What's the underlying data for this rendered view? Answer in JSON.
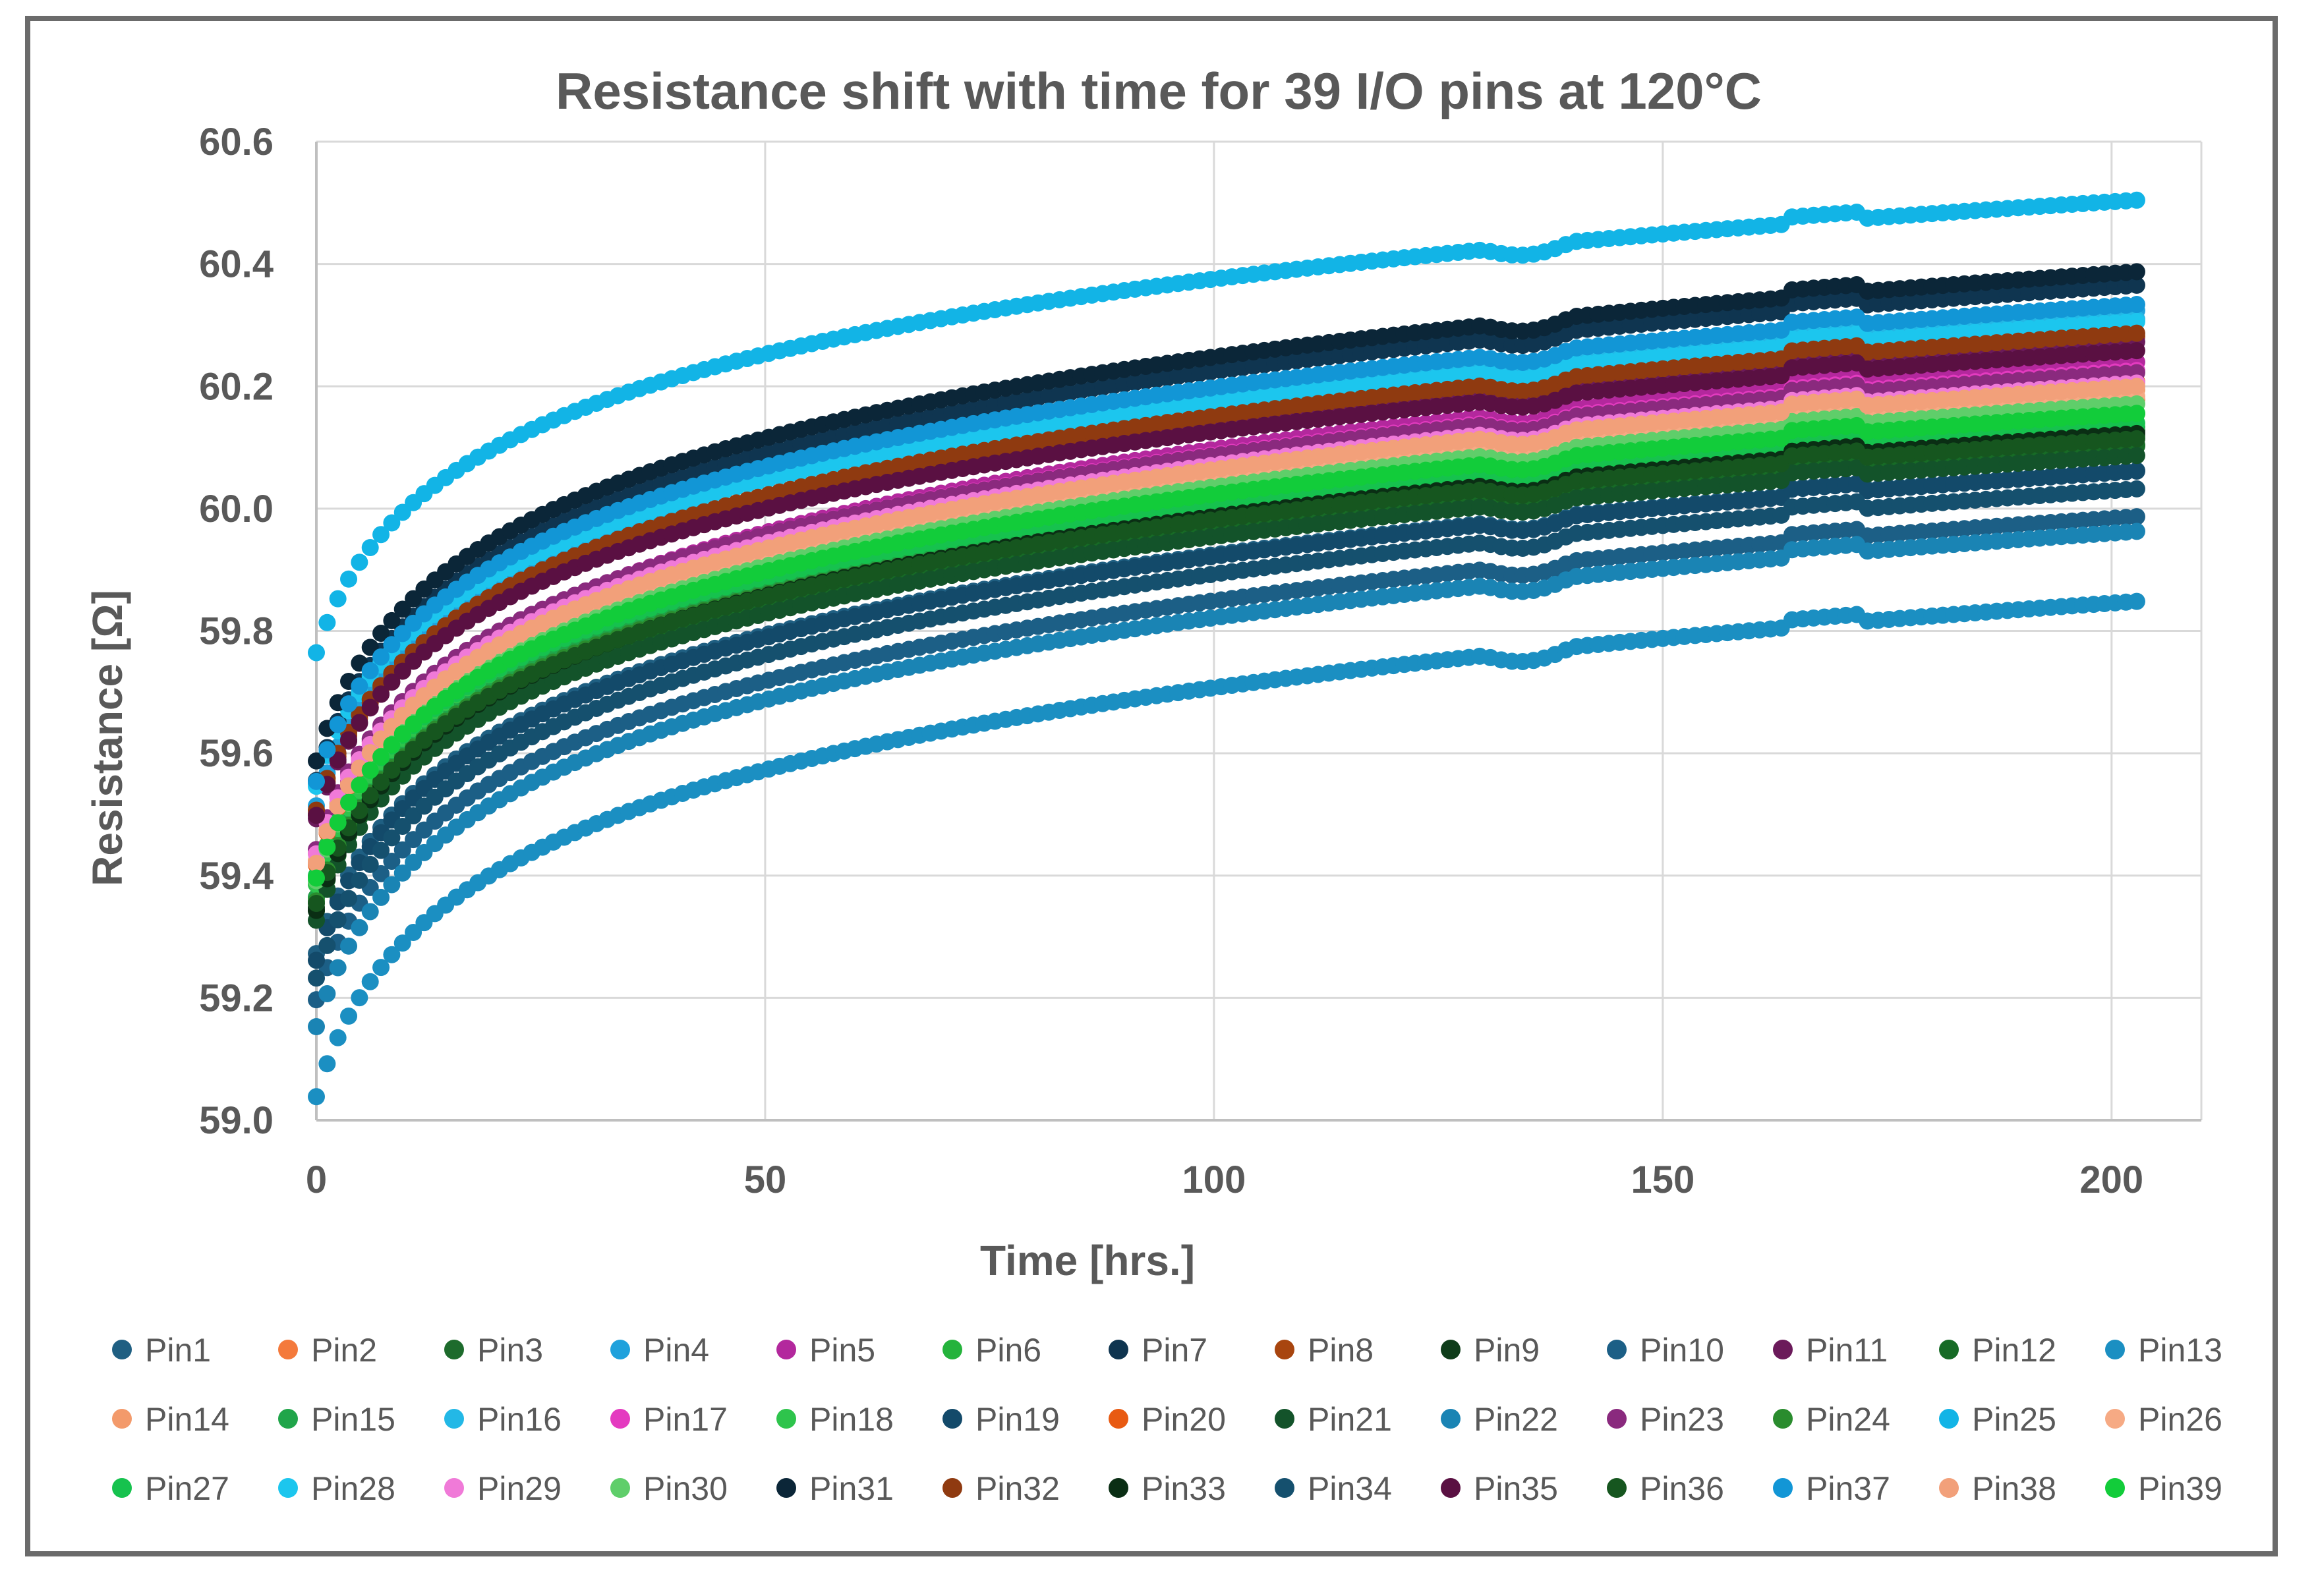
{
  "chart_data": {
    "type": "scatter",
    "title": "Resistance shift with time for 39 I/O pins at 120°C",
    "xlabel": "Time [hrs.]",
    "ylabel": "Resistance [Ω]",
    "xlim": [
      0,
      210
    ],
    "ylim": [
      59.0,
      60.6
    ],
    "xticks": [
      0,
      50,
      100,
      150,
      200
    ],
    "yticks": [
      59.0,
      59.2,
      59.4,
      59.6,
      59.8,
      60.0,
      60.2,
      60.4,
      60.6
    ],
    "ytick_labels": [
      "59.0",
      "59.2",
      "59.4",
      "59.6",
      "59.8",
      "60.0",
      "60.2",
      "60.4",
      "60.6"
    ],
    "x": [
      0,
      2,
      5,
      10,
      20,
      35,
      50,
      64,
      80,
      100,
      120,
      132,
      134,
      150,
      165,
      170,
      185,
      203
    ],
    "grid": true,
    "legend_position": "bottom",
    "series": [
      {
        "name": "Pin1",
        "color": "#1f5f82",
        "start": 59.28,
        "end": 60.07
      },
      {
        "name": "Pin2",
        "color": "#f47a3c",
        "start": 59.4,
        "end": 60.18
      },
      {
        "name": "Pin3",
        "color": "#1d6b2c",
        "start": 59.36,
        "end": 60.1
      },
      {
        "name": "Pin4",
        "color": "#1fa1dc",
        "start": 59.52,
        "end": 60.33
      },
      {
        "name": "Pin5",
        "color": "#b3289d",
        "start": 59.42,
        "end": 60.24
      },
      {
        "name": "Pin6",
        "color": "#25b33c",
        "start": 59.38,
        "end": 60.15
      },
      {
        "name": "Pin7",
        "color": "#0f3550",
        "start": 59.56,
        "end": 60.37
      },
      {
        "name": "Pin8",
        "color": "#a8450f",
        "start": 59.5,
        "end": 60.28
      },
      {
        "name": "Pin9",
        "color": "#0f3d1a",
        "start": 59.34,
        "end": 60.12
      },
      {
        "name": "Pin10",
        "color": "#1c5f86",
        "start": 59.2,
        "end": 59.99
      },
      {
        "name": "Pin11",
        "color": "#6b1a5a",
        "start": 59.49,
        "end": 60.27
      },
      {
        "name": "Pin12",
        "color": "#176b26",
        "start": 59.35,
        "end": 60.11
      },
      {
        "name": "Pin13",
        "color": "#1b8fc2",
        "start": 59.04,
        "end": 59.85
      },
      {
        "name": "Pin14",
        "color": "#f39a6b",
        "start": 59.42,
        "end": 60.19
      },
      {
        "name": "Pin15",
        "color": "#20a54a",
        "start": 59.37,
        "end": 60.14
      },
      {
        "name": "Pin16",
        "color": "#23b8e6",
        "start": 59.55,
        "end": 60.31
      },
      {
        "name": "Pin17",
        "color": "#e43bc0",
        "start": 59.43,
        "end": 60.22
      },
      {
        "name": "Pin18",
        "color": "#2ec44c",
        "start": 59.39,
        "end": 60.16
      },
      {
        "name": "Pin19",
        "color": "#134a6a",
        "start": 59.26,
        "end": 60.06
      },
      {
        "name": "Pin20",
        "color": "#e85a12",
        "start": 59.41,
        "end": 60.2
      },
      {
        "name": "Pin21",
        "color": "#13532a",
        "start": 59.33,
        "end": 60.09
      },
      {
        "name": "Pin22",
        "color": "#1a84b4",
        "start": 59.15,
        "end": 59.96
      },
      {
        "name": "Pin23",
        "color": "#8a2a7e",
        "start": 59.45,
        "end": 60.23
      },
      {
        "name": "Pin24",
        "color": "#2a8c2e",
        "start": 59.36,
        "end": 60.12
      },
      {
        "name": "Pin25",
        "color": "#12b4e6",
        "start": 59.76,
        "end": 60.5
      },
      {
        "name": "Pin26",
        "color": "#f6aa84",
        "start": 59.43,
        "end": 60.19
      },
      {
        "name": "Pin27",
        "color": "#16c24e",
        "start": 59.4,
        "end": 60.14
      },
      {
        "name": "Pin28",
        "color": "#1cc6ee",
        "start": 59.54,
        "end": 60.3
      },
      {
        "name": "Pin29",
        "color": "#f07ad8",
        "start": 59.44,
        "end": 60.21
      },
      {
        "name": "Pin30",
        "color": "#5fce6a",
        "start": 59.39,
        "end": 60.17
      },
      {
        "name": "Pin31",
        "color": "#0b2638",
        "start": 59.58,
        "end": 60.38
      },
      {
        "name": "Pin32",
        "color": "#8f3a10",
        "start": 59.51,
        "end": 60.29
      },
      {
        "name": "Pin33",
        "color": "#0a2e14",
        "start": 59.34,
        "end": 60.12
      },
      {
        "name": "Pin34",
        "color": "#15506e",
        "start": 59.24,
        "end": 60.04
      },
      {
        "name": "Pin35",
        "color": "#5a1042",
        "start": 59.5,
        "end": 60.26
      },
      {
        "name": "Pin36",
        "color": "#16561f",
        "start": 59.35,
        "end": 60.11
      },
      {
        "name": "Pin37",
        "color": "#1296d6",
        "start": 59.56,
        "end": 60.34
      },
      {
        "name": "Pin38",
        "color": "#f2a07a",
        "start": 59.42,
        "end": 60.2
      },
      {
        "name": "Pin39",
        "color": "#12cc3a",
        "start": 59.39,
        "end": 60.15
      }
    ]
  }
}
